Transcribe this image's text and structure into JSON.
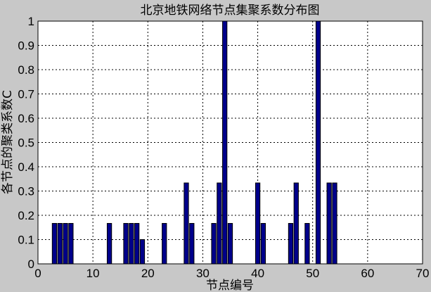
{
  "chart_data": {
    "type": "bar",
    "title": "北京地铁网络节点集聚系数分布图",
    "xlabel": "节点编号",
    "ylabel": "各节点的聚类系数C",
    "xlim": [
      0,
      70
    ],
    "ylim": [
      0,
      1
    ],
    "xticks": [
      0,
      10,
      20,
      30,
      40,
      50,
      60,
      70
    ],
    "yticks": [
      0,
      0.1,
      0.2,
      0.3,
      0.4,
      0.5,
      0.6,
      0.7,
      0.8,
      0.9,
      1
    ],
    "grid": true,
    "bar_color": "#00008b",
    "x": [
      3,
      4,
      5,
      6,
      13,
      16,
      17,
      18,
      19,
      23,
      27,
      28,
      32,
      33,
      34,
      35,
      40,
      41,
      46,
      47,
      49,
      51,
      53,
      54
    ],
    "values": [
      0.1667,
      0.1667,
      0.1667,
      0.1667,
      0.1667,
      0.1667,
      0.1667,
      0.1667,
      0.1,
      0.1667,
      0.3333,
      0.1667,
      0.1667,
      0.3333,
      1,
      0.1667,
      0.3333,
      0.1667,
      0.1667,
      0.3333,
      0.1667,
      1,
      0.3333,
      0.3333
    ]
  }
}
